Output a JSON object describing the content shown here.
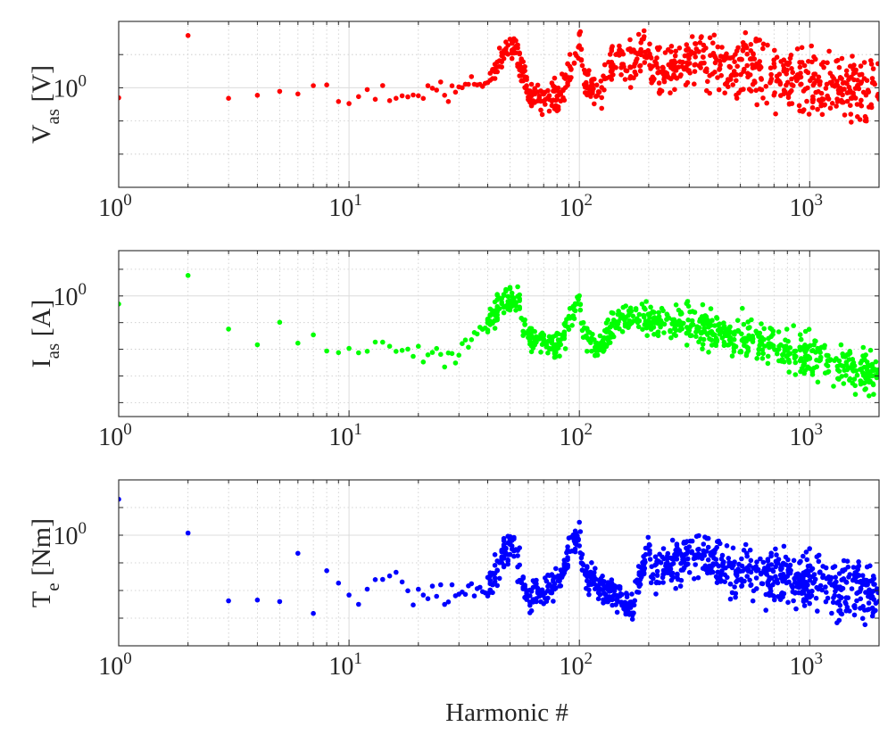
{
  "figure": {
    "xlabel": "Harmonic #"
  },
  "chart_data": [
    {
      "type": "scatter",
      "ylabel_main": "V",
      "ylabel_sub": "as",
      "ylabel_unit": " [V]",
      "color": "#ff0000",
      "x_scale": "log",
      "y_scale": "log",
      "xlim": [
        1,
        2000
      ],
      "ylim": [
        0.001,
        100
      ],
      "x_ticks": [
        {
          "value": 1,
          "base": "10",
          "exp": "0"
        },
        {
          "value": 10,
          "base": "10",
          "exp": "1"
        },
        {
          "value": 100,
          "base": "10",
          "exp": "2"
        },
        {
          "value": 1000,
          "base": "10",
          "exp": "3"
        }
      ],
      "y_ticks": [
        {
          "value": 1,
          "base": "10",
          "exp": "0"
        }
      ],
      "grid": true,
      "anchors": [
        [
          1,
          0.5
        ],
        [
          2,
          40
        ],
        [
          3,
          0.5
        ],
        [
          4,
          0.7
        ],
        [
          5,
          0.7
        ],
        [
          6,
          0.8
        ],
        [
          7,
          0.8
        ],
        [
          8,
          0.9
        ],
        [
          10,
          0.2
        ],
        [
          11,
          0.7
        ],
        [
          15,
          0.6
        ],
        [
          20,
          0.6
        ],
        [
          30,
          0.8
        ],
        [
          40,
          1.6
        ],
        [
          45,
          6
        ],
        [
          48,
          15
        ],
        [
          52,
          15
        ],
        [
          56,
          4
        ],
        [
          60,
          0.6
        ],
        [
          80,
          0.5
        ],
        [
          90,
          2.5
        ],
        [
          100,
          23
        ],
        [
          105,
          2
        ],
        [
          120,
          0.6
        ],
        [
          150,
          12
        ],
        [
          155,
          3
        ],
        [
          200,
          18
        ],
        [
          205,
          2.5
        ],
        [
          300,
          8
        ],
        [
          400,
          5
        ],
        [
          600,
          3
        ],
        [
          1000,
          1.5
        ],
        [
          2000,
          0.7
        ]
      ],
      "spread": [
        [
          1,
          0
        ],
        [
          20,
          0.3
        ],
        [
          100,
          0.5
        ],
        [
          300,
          0.8
        ],
        [
          1000,
          1.0
        ],
        [
          2000,
          1.0
        ]
      ]
    },
    {
      "type": "scatter",
      "ylabel_main": "I",
      "ylabel_sub": "as",
      "ylabel_unit": " [A]",
      "color": "#00ff00",
      "x_scale": "log",
      "y_scale": "log",
      "xlim": [
        1,
        2000
      ],
      "ylim": [
        3e-05,
        50
      ],
      "x_ticks": [
        {
          "value": 1,
          "base": "10",
          "exp": "0"
        },
        {
          "value": 10,
          "base": "10",
          "exp": "1"
        },
        {
          "value": 100,
          "base": "10",
          "exp": "2"
        },
        {
          "value": 1000,
          "base": "10",
          "exp": "3"
        }
      ],
      "y_ticks": [
        {
          "value": 1,
          "base": "10",
          "exp": "0"
        }
      ],
      "grid": true,
      "anchors": [
        [
          1,
          0.5
        ],
        [
          2,
          6
        ],
        [
          3,
          0.07
        ],
        [
          4,
          0.015
        ],
        [
          5,
          0.06
        ],
        [
          6,
          0.015
        ],
        [
          7,
          0.06
        ],
        [
          8,
          0.01
        ],
        [
          10,
          0.01
        ],
        [
          15,
          0.008
        ],
        [
          20,
          0.008
        ],
        [
          30,
          0.005
        ],
        [
          40,
          0.08
        ],
        [
          45,
          0.5
        ],
        [
          50,
          0.6
        ],
        [
          55,
          0.5
        ],
        [
          60,
          0.03
        ],
        [
          80,
          0.01
        ],
        [
          100,
          0.6
        ],
        [
          105,
          0.05
        ],
        [
          120,
          0.01
        ],
        [
          150,
          0.2
        ],
        [
          200,
          0.15
        ],
        [
          300,
          0.08
        ],
        [
          500,
          0.03
        ],
        [
          1000,
          0.005
        ],
        [
          2000,
          0.001
        ]
      ],
      "spread": [
        [
          1,
          0
        ],
        [
          10,
          0.3
        ],
        [
          30,
          0.5
        ],
        [
          100,
          0.5
        ],
        [
          300,
          0.7
        ],
        [
          1000,
          0.8
        ],
        [
          2000,
          0.8
        ]
      ]
    },
    {
      "type": "scatter",
      "ylabel_main": "T",
      "ylabel_sub": "e",
      "ylabel_unit": " [Nm]",
      "color": "#0000ff",
      "x_scale": "log",
      "y_scale": "log",
      "xlim": [
        1,
        2000
      ],
      "ylim": [
        0.0001,
        100
      ],
      "x_ticks": [
        {
          "value": 1,
          "base": "10",
          "exp": "0"
        },
        {
          "value": 10,
          "base": "10",
          "exp": "1"
        },
        {
          "value": 100,
          "base": "10",
          "exp": "2"
        },
        {
          "value": 1000,
          "base": "10",
          "exp": "3"
        }
      ],
      "y_ticks": [
        {
          "value": 1,
          "base": "10",
          "exp": "0"
        }
      ],
      "grid": true,
      "anchors": [
        [
          1,
          20
        ],
        [
          2,
          1.3
        ],
        [
          3,
          0.004
        ],
        [
          4,
          0.005
        ],
        [
          5,
          0.003
        ],
        [
          6,
          0.15
        ],
        [
          7,
          0.003
        ],
        [
          8,
          0.07
        ],
        [
          10,
          0.003
        ],
        [
          15,
          0.04
        ],
        [
          20,
          0.005
        ],
        [
          30,
          0.006
        ],
        [
          40,
          0.01
        ],
        [
          48,
          0.3
        ],
        [
          52,
          0.3
        ],
        [
          60,
          0.006
        ],
        [
          80,
          0.02
        ],
        [
          100,
          1.2
        ],
        [
          105,
          0.04
        ],
        [
          150,
          0.005
        ],
        [
          170,
          0.002
        ],
        [
          200,
          0.5
        ],
        [
          205,
          0.03
        ],
        [
          300,
          0.2
        ],
        [
          500,
          0.05
        ],
        [
          1000,
          0.02
        ],
        [
          2000,
          0.006
        ]
      ],
      "spread": [
        [
          1,
          0
        ],
        [
          10,
          0.3
        ],
        [
          50,
          0.6
        ],
        [
          150,
          0.5
        ],
        [
          300,
          0.8
        ],
        [
          1000,
          1.0
        ],
        [
          2000,
          1.0
        ]
      ]
    }
  ]
}
